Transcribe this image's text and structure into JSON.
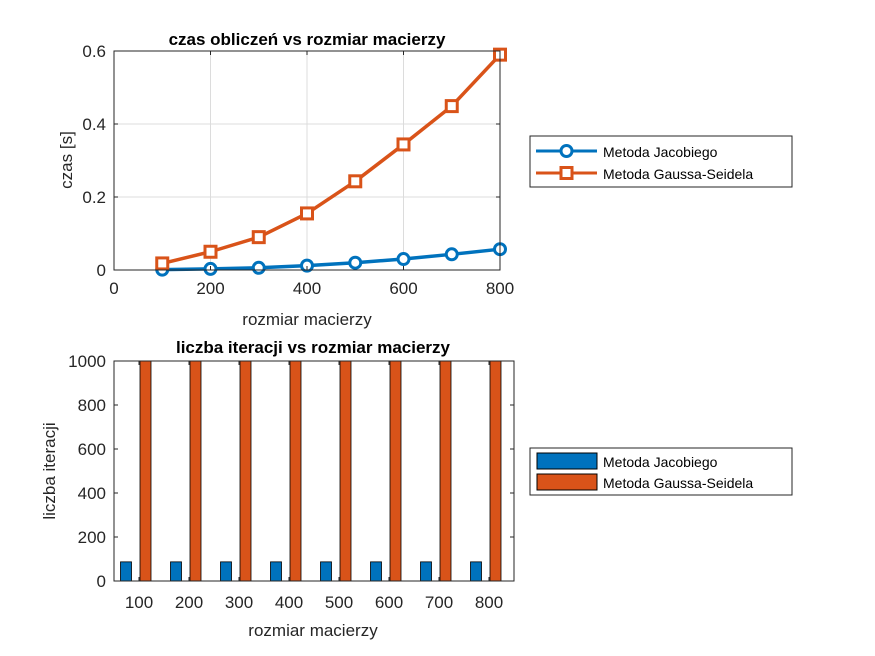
{
  "colors": {
    "jacobi": "#0072BD",
    "gauss": "#D95319",
    "axis": "#262626",
    "grid": "#dcdcdc"
  },
  "legend": {
    "jacobi": "Metoda Jacobiego",
    "gauss": "Metoda Gaussa-Seidela"
  },
  "chart_data": [
    {
      "type": "line",
      "title": "czas obliczeń vs rozmiar macierzy",
      "xlabel": "rozmiar macierzy",
      "ylabel": "czas [s]",
      "xlim": [
        0,
        800
      ],
      "ylim": [
        0,
        0.6
      ],
      "xticks": [
        0,
        200,
        400,
        600,
        800
      ],
      "yticks": [
        0,
        0.2,
        0.4,
        0.6
      ],
      "grid": true,
      "legend_position": "outside-right",
      "x": [
        100,
        200,
        300,
        400,
        500,
        600,
        700,
        800
      ],
      "series": [
        {
          "name": "Metoda Jacobiego",
          "marker": "circle",
          "color": "#0072BD",
          "values": [
            0.001,
            0.003,
            0.006,
            0.012,
            0.02,
            0.03,
            0.043,
            0.057
          ]
        },
        {
          "name": "Metoda Gaussa-Seidela",
          "marker": "square",
          "color": "#D95319",
          "values": [
            0.018,
            0.05,
            0.09,
            0.155,
            0.243,
            0.344,
            0.449,
            0.59
          ]
        }
      ]
    },
    {
      "type": "bar",
      "title": "liczba iteracji vs rozmiar macierzy",
      "xlabel": "rozmiar macierzy",
      "ylabel": "liczba iteracji",
      "categories": [
        "100",
        "200",
        "300",
        "400",
        "500",
        "600",
        "700",
        "800"
      ],
      "ylim": [
        0,
        1000
      ],
      "yticks": [
        0,
        200,
        400,
        600,
        800,
        1000
      ],
      "grid": false,
      "legend_position": "outside-right",
      "series": [
        {
          "name": "Metoda Jacobiego",
          "color": "#0072BD",
          "values": [
            87,
            87,
            87,
            87,
            87,
            87,
            87,
            87
          ]
        },
        {
          "name": "Metoda Gaussa-Seidela",
          "color": "#D95319",
          "values": [
            1000,
            1000,
            1000,
            1000,
            1000,
            1000,
            1000,
            1000
          ]
        }
      ]
    }
  ]
}
